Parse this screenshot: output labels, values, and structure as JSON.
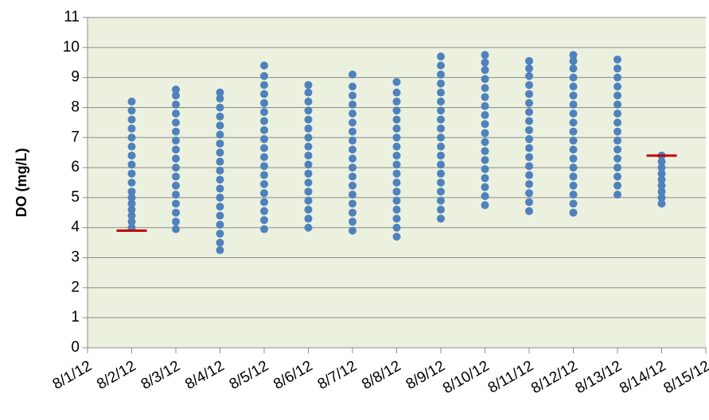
{
  "chart_data": {
    "type": "scatter",
    "y_label": "DO (mg/L)",
    "color": "#4f81bd",
    "plot_background": "#ebf1de",
    "grid": true,
    "ylim": [
      0,
      11
    ],
    "yticks": [
      0,
      1,
      2,
      3,
      4,
      5,
      6,
      7,
      8,
      9,
      10,
      11
    ],
    "xlim": [
      "8/1/12",
      "8/15/12"
    ],
    "xticks": [
      "8/1/12",
      "8/2/12",
      "8/3/12",
      "8/4/12",
      "8/5/12",
      "8/6/12",
      "8/7/12",
      "8/8/12",
      "8/9/12",
      "8/10/12",
      "8/11/12",
      "8/12/12",
      "8/13/12",
      "8/14/12",
      "8/15/12"
    ],
    "points": [
      {
        "x": "8/2/12",
        "values": [
          4.0,
          4.2,
          4.4,
          4.6,
          4.8,
          5.0,
          5.2,
          5.5,
          5.8,
          6.1,
          6.4,
          6.7,
          7.0,
          7.3,
          7.6,
          7.9,
          8.2
        ]
      },
      {
        "x": "8/3/12",
        "values": [
          3.95,
          4.2,
          4.5,
          4.8,
          5.1,
          5.4,
          5.7,
          6.0,
          6.3,
          6.6,
          6.9,
          7.2,
          7.5,
          7.8,
          8.1,
          8.4,
          8.6
        ]
      },
      {
        "x": "8/4/12",
        "values": [
          3.25,
          3.5,
          3.8,
          4.1,
          4.4,
          4.7,
          5.0,
          5.3,
          5.6,
          5.9,
          6.2,
          6.5,
          6.8,
          7.1,
          7.4,
          7.7,
          8.0,
          8.3,
          8.5
        ]
      },
      {
        "x": "8/5/12",
        "values": [
          3.95,
          4.25,
          4.55,
          4.85,
          5.15,
          5.45,
          5.75,
          6.05,
          6.35,
          6.65,
          6.95,
          7.25,
          7.55,
          7.85,
          8.15,
          8.45,
          8.75,
          9.05,
          9.4
        ]
      },
      {
        "x": "8/6/12",
        "values": [
          4.0,
          4.3,
          4.6,
          4.9,
          5.2,
          5.5,
          5.8,
          6.1,
          6.4,
          6.7,
          7.0,
          7.3,
          7.6,
          7.9,
          8.2,
          8.5,
          8.75
        ]
      },
      {
        "x": "8/7/12",
        "values": [
          3.9,
          4.2,
          4.5,
          4.8,
          5.1,
          5.4,
          5.7,
          6.0,
          6.3,
          6.6,
          6.9,
          7.2,
          7.5,
          7.8,
          8.1,
          8.4,
          8.7,
          9.1
        ]
      },
      {
        "x": "8/8/12",
        "values": [
          3.7,
          4.0,
          4.3,
          4.6,
          4.9,
          5.2,
          5.5,
          5.8,
          6.1,
          6.4,
          6.7,
          7.0,
          7.3,
          7.6,
          7.9,
          8.2,
          8.5,
          8.85
        ]
      },
      {
        "x": "8/9/12",
        "values": [
          4.3,
          4.6,
          4.9,
          5.2,
          5.5,
          5.8,
          6.1,
          6.4,
          6.7,
          7.0,
          7.3,
          7.6,
          7.9,
          8.2,
          8.5,
          8.8,
          9.1,
          9.4,
          9.7
        ]
      },
      {
        "x": "8/10/12",
        "values": [
          4.75,
          5.05,
          5.35,
          5.65,
          5.95,
          6.25,
          6.55,
          6.85,
          7.15,
          7.45,
          7.75,
          8.05,
          8.35,
          8.65,
          8.95,
          9.25,
          9.5,
          9.75
        ]
      },
      {
        "x": "8/11/12",
        "values": [
          4.55,
          4.85,
          5.15,
          5.45,
          5.75,
          6.05,
          6.35,
          6.65,
          6.95,
          7.25,
          7.55,
          7.85,
          8.15,
          8.45,
          8.75,
          9.05,
          9.3,
          9.55
        ]
      },
      {
        "x": "8/12/12",
        "values": [
          4.5,
          4.8,
          5.1,
          5.4,
          5.7,
          6.0,
          6.3,
          6.6,
          6.9,
          7.2,
          7.5,
          7.8,
          8.1,
          8.4,
          8.7,
          9.0,
          9.3,
          9.55,
          9.75
        ]
      },
      {
        "x": "8/13/12",
        "values": [
          5.1,
          5.4,
          5.7,
          6.0,
          6.3,
          6.6,
          6.9,
          7.2,
          7.5,
          7.8,
          8.1,
          8.4,
          8.7,
          9.0,
          9.3,
          9.6
        ]
      },
      {
        "x": "8/14/12",
        "values": [
          4.8,
          5.0,
          5.2,
          5.4,
          5.6,
          5.8,
          6.0,
          6.2,
          6.4
        ]
      }
    ],
    "markers": [
      {
        "x": "8/2/12",
        "value": 3.9,
        "color": "#c00000"
      },
      {
        "x": "8/14/12",
        "value": 6.4,
        "color": "#c00000"
      }
    ]
  }
}
